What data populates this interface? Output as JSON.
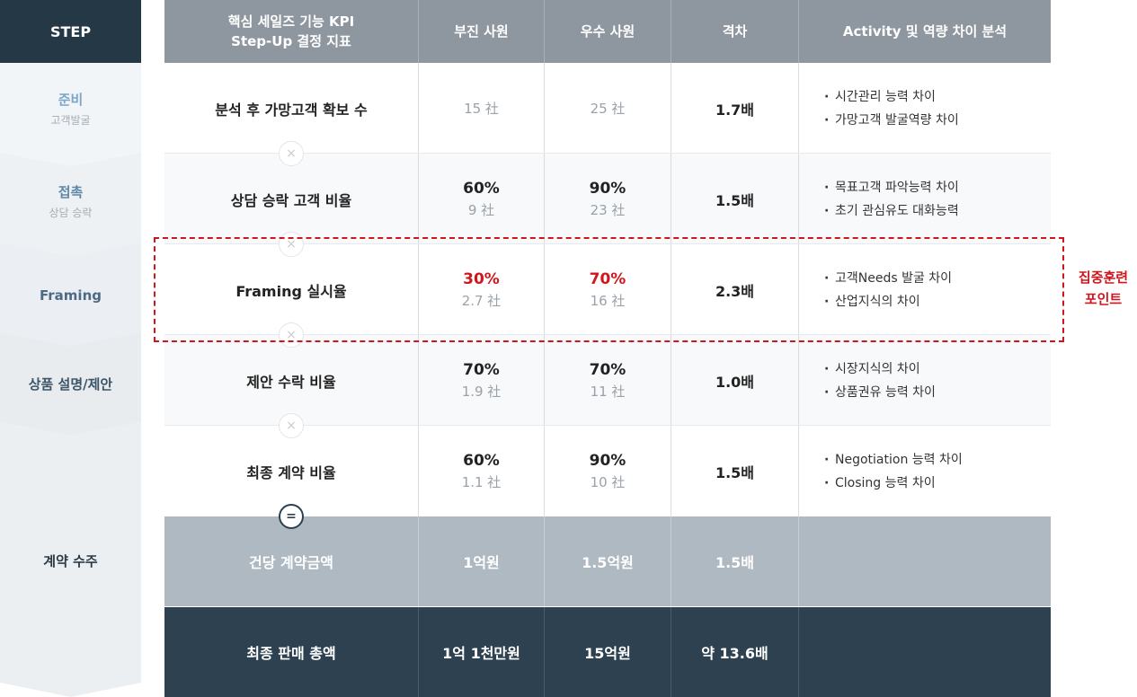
{
  "steps": {
    "header": "STEP",
    "items": [
      {
        "title": "준비",
        "sub": "고객발굴",
        "color": "#7aa6c9"
      },
      {
        "title": "접촉",
        "sub": "상담 승락",
        "color": "#5f86a6"
      },
      {
        "title": "Framing",
        "sub": "",
        "color": "#4c6b85"
      },
      {
        "title": "상품 설명/제안",
        "sub": "",
        "color": "#3c5568"
      },
      {
        "title": "계약 수주",
        "sub": "",
        "color": "#2b3b48"
      }
    ]
  },
  "table": {
    "headers": {
      "kpi_line1": "핵심 세일즈 기능 KPI",
      "kpi_line2": "Step-Up 결정 지표",
      "low": "부진 사원",
      "high": "우수 사원",
      "gap": "격차",
      "analysis": "Activity 및 역량 차이 분석"
    },
    "rows": [
      {
        "kpi": "분석 후 가망고객 확보 수",
        "low_pct": "",
        "low_cnt": "15 社",
        "high_pct": "",
        "high_cnt": "25 社",
        "gap": "1.7배",
        "analysis": [
          "시간관리 능력 차이",
          "가망고객 발굴역량 차이"
        ]
      },
      {
        "kpi": "상담 승락 고객 비율",
        "low_pct": "60%",
        "low_cnt": "9 社",
        "high_pct": "90%",
        "high_cnt": "23 社",
        "gap": "1.5배",
        "analysis": [
          "목표고객 파악능력 차이",
          "초기 관심유도 대화능력"
        ]
      },
      {
        "kpi": "Framing 실시율",
        "low_pct": "30%",
        "low_cnt": "2.7 社",
        "high_pct": "70%",
        "high_cnt": "16 社",
        "gap": "2.3배",
        "analysis": [
          "고객Needs 발굴 차이",
          "산업지식의 차이"
        ]
      },
      {
        "kpi": "제안 수락 비율",
        "low_pct": "70%",
        "low_cnt": "1.9 社",
        "high_pct": "70%",
        "high_cnt": "11 社",
        "gap": "1.0배",
        "analysis": [
          "시장지식의 차이",
          "상품권유 능력 차이"
        ]
      },
      {
        "kpi": "최종 계약 비율",
        "low_pct": "60%",
        "low_cnt": "1.1 社",
        "high_pct": "90%",
        "high_cnt": "10 社",
        "gap": "1.5배",
        "analysis": [
          "Negotiation 능력 차이",
          "Closing 능력 차이"
        ]
      }
    ],
    "operators": [
      "×",
      "×",
      "×",
      "×",
      "="
    ],
    "summary_amount": {
      "kpi": "건당 계약금액",
      "low": "1억원",
      "high": "1.5억원",
      "gap": "1.5배"
    },
    "summary_total": {
      "kpi": "최종 판매 총액",
      "low": "1억 1천만원",
      "high": "15억원",
      "gap": "약 13.6배"
    }
  },
  "focus": {
    "line1": "집중훈련",
    "line2": "포인트",
    "color": "#d0161c"
  }
}
